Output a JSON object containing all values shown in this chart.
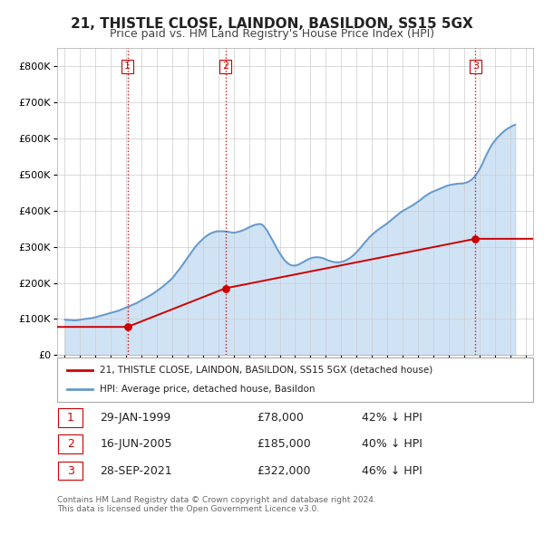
{
  "title": "21, THISTLE CLOSE, LAINDON, BASILDON, SS15 5GX",
  "subtitle": "Price paid vs. HM Land Registry's House Price Index (HPI)",
  "sale_color": "#cc0000",
  "hpi_color": "#6699cc",
  "hpi_fill_color": "#aaccee",
  "vline_color": "#cc0000",
  "ylim": [
    0,
    850000
  ],
  "yticks": [
    0,
    100000,
    200000,
    300000,
    400000,
    500000,
    600000,
    700000,
    800000
  ],
  "ytick_labels": [
    "£0",
    "£100K",
    "£200K",
    "£300K",
    "£400K",
    "£500K",
    "£600K",
    "£700K",
    "£800K"
  ],
  "legend_sale_label": "21, THISTLE CLOSE, LAINDON, BASILDON, SS15 5GX (detached house)",
  "legend_hpi_label": "HPI: Average price, detached house, Basildon",
  "footnote": "Contains HM Land Registry data © Crown copyright and database right 2024.\nThis data is licensed under the Open Government Licence v3.0.",
  "transactions": [
    {
      "num": 1,
      "date": "29-JAN-1999",
      "price": 78000,
      "pct": "42%",
      "year": 1999.08
    },
    {
      "num": 2,
      "date": "16-JUN-2005",
      "price": 185000,
      "pct": "40%",
      "year": 2005.46
    },
    {
      "num": 3,
      "date": "28-SEP-2021",
      "price": 322000,
      "pct": "46%",
      "year": 2021.74
    }
  ],
  "hpi_years": [
    1995.0,
    1995.17,
    1995.33,
    1995.5,
    1995.67,
    1995.83,
    1996.0,
    1996.17,
    1996.33,
    1996.5,
    1996.67,
    1996.83,
    1997.0,
    1997.17,
    1997.33,
    1997.5,
    1997.67,
    1997.83,
    1998.0,
    1998.17,
    1998.33,
    1998.5,
    1998.67,
    1998.83,
    1999.0,
    1999.17,
    1999.33,
    1999.5,
    1999.67,
    1999.83,
    2000.0,
    2000.17,
    2000.33,
    2000.5,
    2000.67,
    2000.83,
    2001.0,
    2001.17,
    2001.33,
    2001.5,
    2001.67,
    2001.83,
    2002.0,
    2002.17,
    2002.33,
    2002.5,
    2002.67,
    2002.83,
    2003.0,
    2003.17,
    2003.33,
    2003.5,
    2003.67,
    2003.83,
    2004.0,
    2004.17,
    2004.33,
    2004.5,
    2004.67,
    2004.83,
    2005.0,
    2005.17,
    2005.33,
    2005.5,
    2005.67,
    2005.83,
    2006.0,
    2006.17,
    2006.33,
    2006.5,
    2006.67,
    2006.83,
    2007.0,
    2007.17,
    2007.33,
    2007.5,
    2007.67,
    2007.83,
    2008.0,
    2008.17,
    2008.33,
    2008.5,
    2008.67,
    2008.83,
    2009.0,
    2009.17,
    2009.33,
    2009.5,
    2009.67,
    2009.83,
    2010.0,
    2010.17,
    2010.33,
    2010.5,
    2010.67,
    2010.83,
    2011.0,
    2011.17,
    2011.33,
    2011.5,
    2011.67,
    2011.83,
    2012.0,
    2012.17,
    2012.33,
    2012.5,
    2012.67,
    2012.83,
    2013.0,
    2013.17,
    2013.33,
    2013.5,
    2013.67,
    2013.83,
    2014.0,
    2014.17,
    2014.33,
    2014.5,
    2014.67,
    2014.83,
    2015.0,
    2015.17,
    2015.33,
    2015.5,
    2015.67,
    2015.83,
    2016.0,
    2016.17,
    2016.33,
    2016.5,
    2016.67,
    2016.83,
    2017.0,
    2017.17,
    2017.33,
    2017.5,
    2017.67,
    2017.83,
    2018.0,
    2018.17,
    2018.33,
    2018.5,
    2018.67,
    2018.83,
    2019.0,
    2019.17,
    2019.33,
    2019.5,
    2019.67,
    2019.83,
    2020.0,
    2020.17,
    2020.33,
    2020.5,
    2020.67,
    2020.83,
    2021.0,
    2021.17,
    2021.33,
    2021.5,
    2021.67,
    2021.83,
    2022.0,
    2022.17,
    2022.33,
    2022.5,
    2022.67,
    2022.83,
    2023.0,
    2023.17,
    2023.33,
    2023.5,
    2023.67,
    2023.83,
    2024.0,
    2024.17,
    2024.33
  ],
  "hpi_values": [
    98000,
    97500,
    97000,
    96500,
    96000,
    97000,
    98000,
    99000,
    100500,
    101000,
    102000,
    103000,
    105000,
    107000,
    109000,
    111000,
    113000,
    115000,
    117000,
    119000,
    121000,
    123000,
    126000,
    129000,
    132000,
    135000,
    138000,
    141000,
    144000,
    148000,
    152000,
    156000,
    160000,
    164000,
    168000,
    173000,
    178000,
    183000,
    188000,
    194000,
    200000,
    206000,
    213000,
    222000,
    231000,
    240000,
    250000,
    260000,
    270000,
    280000,
    290000,
    300000,
    308000,
    315000,
    322000,
    328000,
    333000,
    337000,
    340000,
    342000,
    343000,
    343000,
    343000,
    342000,
    341000,
    340000,
    339000,
    340000,
    342000,
    344000,
    347000,
    350000,
    354000,
    357000,
    360000,
    362000,
    363000,
    362000,
    355000,
    345000,
    333000,
    320000,
    307000,
    294000,
    282000,
    271000,
    262000,
    255000,
    250000,
    248000,
    248000,
    250000,
    253000,
    257000,
    261000,
    265000,
    268000,
    270000,
    271000,
    271000,
    270000,
    268000,
    265000,
    262000,
    260000,
    258000,
    257000,
    257000,
    258000,
    260000,
    263000,
    267000,
    272000,
    278000,
    285000,
    293000,
    301000,
    310000,
    318000,
    326000,
    333000,
    339000,
    345000,
    350000,
    355000,
    360000,
    365000,
    371000,
    377000,
    383000,
    389000,
    394000,
    399000,
    403000,
    407000,
    411000,
    415000,
    420000,
    425000,
    430000,
    436000,
    441000,
    446000,
    450000,
    453000,
    456000,
    459000,
    462000,
    465000,
    468000,
    470000,
    472000,
    473000,
    474000,
    475000,
    475000,
    476000,
    478000,
    481000,
    486000,
    493000,
    502000,
    514000,
    527000,
    543000,
    558000,
    572000,
    584000,
    593000,
    602000,
    609000,
    616000,
    622000,
    627000,
    631000,
    635000,
    638000
  ],
  "sale_years": [
    1999.08,
    2005.46,
    2021.74
  ],
  "sale_prices": [
    78000,
    185000,
    322000
  ],
  "xlim": [
    1994.5,
    2025.5
  ],
  "xticks": [
    1995,
    1996,
    1997,
    1998,
    1999,
    2000,
    2001,
    2002,
    2003,
    2004,
    2005,
    2006,
    2007,
    2008,
    2009,
    2010,
    2011,
    2012,
    2013,
    2014,
    2015,
    2016,
    2017,
    2018,
    2019,
    2020,
    2021,
    2022,
    2023,
    2024,
    2025
  ]
}
